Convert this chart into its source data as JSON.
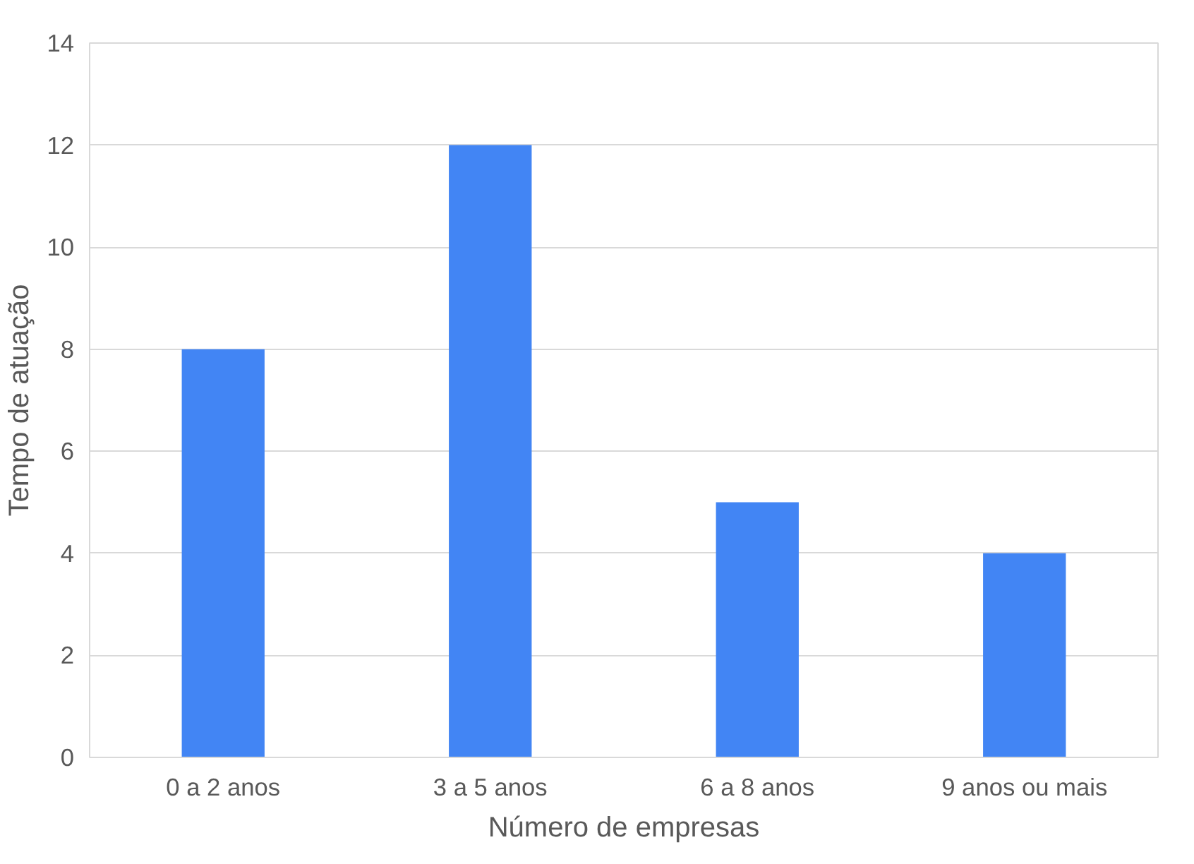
{
  "chart_data": {
    "type": "bar",
    "xlabel": "Número de empresas",
    "ylabel": "Tempo de atuação",
    "categories": [
      "0 a 2 anos",
      "3 a 5 anos",
      "6 a 8 anos",
      "9 anos ou mais"
    ],
    "values": [
      8,
      12,
      5,
      4
    ],
    "color": "#4285f4",
    "ylim": [
      0,
      14
    ],
    "yticks": [
      0,
      2,
      4,
      6,
      8,
      10,
      12,
      14
    ],
    "grid": "y"
  }
}
